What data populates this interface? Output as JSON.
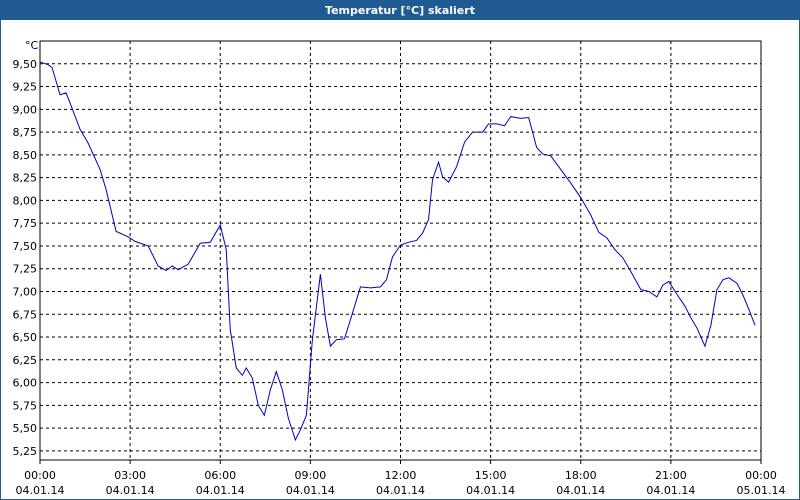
{
  "chart_data": {
    "type": "line",
    "title": "Temperatur [°C] skaliert",
    "y_label": "°C",
    "grid": true,
    "xlim": [
      "2014-01-04T00:00",
      "2014-01-05T00:00"
    ],
    "xticks": [
      {
        "value": "2014-01-04T00:00",
        "label": "00:00",
        "date": "04.01.14"
      },
      {
        "value": "2014-01-04T03:00",
        "label": "03:00",
        "date": "04.01.14"
      },
      {
        "value": "2014-01-04T06:00",
        "label": "06:00",
        "date": "04.01.14"
      },
      {
        "value": "2014-01-04T09:00",
        "label": "09:00",
        "date": "04.01.14"
      },
      {
        "value": "2014-01-04T12:00",
        "label": "12:00",
        "date": "04.01.14"
      },
      {
        "value": "2014-01-04T15:00",
        "label": "15:00",
        "date": "04.01.14"
      },
      {
        "value": "2014-01-04T18:00",
        "label": "18:00",
        "date": "04.01.14"
      },
      {
        "value": "2014-01-04T21:00",
        "label": "21:00",
        "date": "04.01.14"
      },
      {
        "value": "2014-01-05T00:00",
        "label": "00:00",
        "date": "05.01.14"
      }
    ],
    "ylim": [
      5.15,
      9.75
    ],
    "yticks": [
      {
        "value": 5.25,
        "label": "5,25"
      },
      {
        "value": 5.5,
        "label": "5,50"
      },
      {
        "value": 5.75,
        "label": "5,75"
      },
      {
        "value": 6,
        "label": "6,00"
      },
      {
        "value": 6.25,
        "label": "6,25"
      },
      {
        "value": 6.5,
        "label": "6,50"
      },
      {
        "value": 6.75,
        "label": "6,75"
      },
      {
        "value": 7,
        "label": "7,00"
      },
      {
        "value": 7.25,
        "label": "7,25"
      },
      {
        "value": 7.5,
        "label": "7,50"
      },
      {
        "value": 7.75,
        "label": "7,75"
      },
      {
        "value": 8,
        "label": "8,00"
      },
      {
        "value": 8.25,
        "label": "8,25"
      },
      {
        "value": 8.5,
        "label": "8,50"
      },
      {
        "value": 8.75,
        "label": "8,75"
      },
      {
        "value": 9,
        "label": "9,00"
      },
      {
        "value": 9.25,
        "label": "9,25"
      },
      {
        "value": 9.5,
        "label": "9,50"
      }
    ],
    "x": [
      "2014-01-04T00:00",
      "2014-01-04T00:16",
      "2014-01-04T00:24",
      "2014-01-04T00:40",
      "2014-01-04T00:52",
      "2014-01-04T01:00",
      "2014-01-04T01:20",
      "2014-01-04T01:36",
      "2014-01-04T02:00",
      "2014-01-04T02:12",
      "2014-01-04T02:32",
      "2014-01-04T02:56",
      "2014-01-04T03:10",
      "2014-01-04T03:36",
      "2014-01-04T03:56",
      "2014-01-04T04:12",
      "2014-01-04T04:24",
      "2014-01-04T04:36",
      "2014-01-04T04:56",
      "2014-01-04T05:20",
      "2014-01-04T05:40",
      "2014-01-04T06:00",
      "2014-01-04T06:12",
      "2014-01-04T06:20",
      "2014-01-04T06:32",
      "2014-01-04T06:44",
      "2014-01-04T06:52",
      "2014-01-04T07:04",
      "2014-01-04T07:16",
      "2014-01-04T07:28",
      "2014-01-04T07:40",
      "2014-01-04T07:52",
      "2014-01-04T08:04",
      "2014-01-04T08:16",
      "2014-01-04T08:30",
      "2014-01-04T08:40",
      "2014-01-04T08:52",
      "2014-01-04T09:04",
      "2014-01-04T09:20",
      "2014-01-04T09:30",
      "2014-01-04T09:40",
      "2014-01-04T09:52",
      "2014-01-04T10:08",
      "2014-01-04T10:20",
      "2014-01-04T10:40",
      "2014-01-04T11:00",
      "2014-01-04T11:20",
      "2014-01-04T11:32",
      "2014-01-04T11:44",
      "2014-01-04T12:00",
      "2014-01-04T12:16",
      "2014-01-04T12:32",
      "2014-01-04T12:44",
      "2014-01-04T12:56",
      "2014-01-04T13:04",
      "2014-01-04T13:16",
      "2014-01-04T13:24",
      "2014-01-04T13:36",
      "2014-01-04T13:52",
      "2014-01-04T14:08",
      "2014-01-04T14:24",
      "2014-01-04T14:44",
      "2014-01-04T14:56",
      "2014-01-04T15:12",
      "2014-01-04T15:28",
      "2014-01-04T15:40",
      "2014-01-04T16:00",
      "2014-01-04T16:16",
      "2014-01-04T16:32",
      "2014-01-04T16:44",
      "2014-01-04T17:00",
      "2014-01-04T17:20",
      "2014-01-04T17:40",
      "2014-01-04T18:00",
      "2014-01-04T18:20",
      "2014-01-04T18:36",
      "2014-01-04T18:52",
      "2014-01-04T19:08",
      "2014-01-04T19:24",
      "2014-01-04T19:40",
      "2014-01-04T20:00",
      "2014-01-04T20:16",
      "2014-01-04T20:32",
      "2014-01-04T20:44",
      "2014-01-04T20:56",
      "2014-01-04T21:12",
      "2014-01-04T21:28",
      "2014-01-04T21:40",
      "2014-01-04T21:52",
      "2014-01-04T22:08",
      "2014-01-04T22:20",
      "2014-01-04T22:32",
      "2014-01-04T22:44",
      "2014-01-04T22:56",
      "2014-01-04T23:12",
      "2014-01-04T23:24",
      "2014-01-04T23:36",
      "2014-01-04T23:48"
    ],
    "series": [
      {
        "name": "Temperatur",
        "color": "#0000c0",
        "values": [
          9.52,
          9.49,
          9.46,
          9.16,
          9.18,
          9.07,
          8.78,
          8.63,
          8.34,
          8.12,
          7.66,
          7.6,
          7.55,
          7.5,
          7.28,
          7.23,
          7.28,
          7.24,
          7.3,
          7.53,
          7.54,
          7.73,
          7.46,
          6.58,
          6.16,
          6.08,
          6.16,
          6.05,
          5.75,
          5.64,
          5.92,
          6.12,
          5.92,
          5.61,
          5.37,
          5.48,
          5.64,
          6.47,
          7.19,
          6.71,
          6.4,
          6.47,
          6.48,
          6.69,
          7.05,
          7.04,
          7.05,
          7.13,
          7.38,
          7.51,
          7.54,
          7.56,
          7.64,
          7.79,
          8.23,
          8.42,
          8.26,
          8.2,
          8.37,
          8.64,
          8.75,
          8.75,
          8.84,
          8.84,
          8.82,
          8.92,
          8.9,
          8.91,
          8.58,
          8.51,
          8.49,
          8.34,
          8.19,
          8.03,
          7.84,
          7.65,
          7.59,
          7.46,
          7.37,
          7.22,
          7.02,
          7.0,
          6.94,
          7.07,
          7.11,
          6.97,
          6.84,
          6.71,
          6.6,
          6.4,
          6.63,
          7.02,
          7.13,
          7.15,
          7.09,
          6.96,
          6.8,
          6.63
        ]
      }
    ]
  }
}
